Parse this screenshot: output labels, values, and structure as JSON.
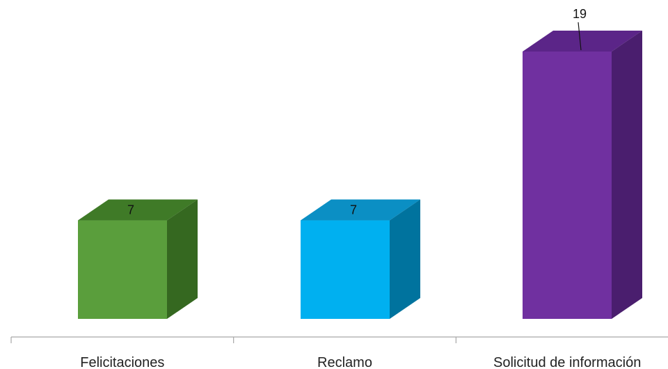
{
  "chart_data": {
    "type": "bar",
    "style": "3d-column",
    "categories": [
      "Felicitaciones",
      "Reclamo",
      "Solicitud de información"
    ],
    "values": [
      7,
      7,
      19
    ],
    "data_labels": [
      "7",
      "7",
      "19"
    ],
    "colors": [
      {
        "front": "#5a9e3c",
        "top": "#3f7a27",
        "side": "#356820"
      },
      {
        "front": "#00b0f0",
        "top": "#0b8fc4",
        "side": "#00739e"
      },
      {
        "front": "#7030a0",
        "top": "#5b2588",
        "side": "#4a1e6e"
      }
    ],
    "title": "",
    "xlabel": "",
    "ylabel": "",
    "ylim": [
      0,
      19
    ],
    "grid": false,
    "legend": "none"
  }
}
